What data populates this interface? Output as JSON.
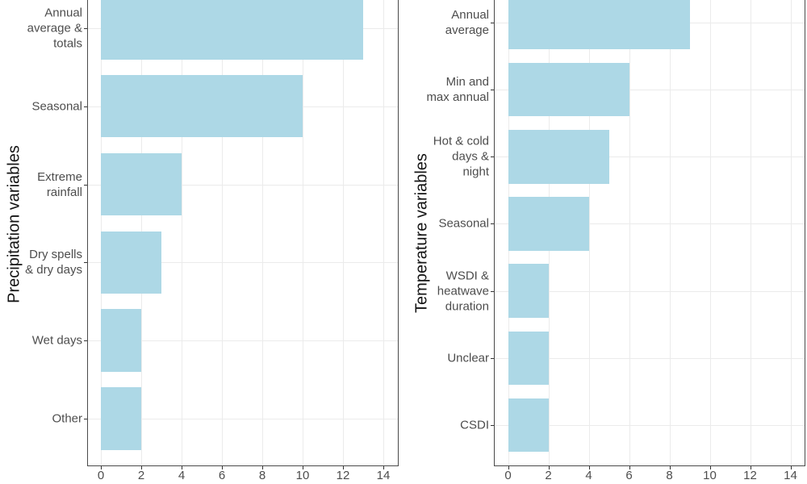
{
  "figure": {
    "description_visible_text_only": true
  },
  "style": {
    "bar_fill": "#ADD8E6",
    "grid_color": "#EBEBEB",
    "panel_border_color": "#4A4A4A",
    "tick_color": "#333333",
    "tick_label_color": "#4D4D4D",
    "axis_title_color": "#141414",
    "background": "#FFFFFF"
  },
  "chart_data": [
    {
      "type": "bar",
      "orientation": "horizontal",
      "title": "",
      "ylabel": "Precipitation variables",
      "xlabel": "",
      "categories": [
        "Annual average & totals",
        "Seasonal",
        "Extreme rainfall",
        "Dry spells & dry days",
        "Wet days",
        "Other"
      ],
      "category_display": [
        "Annual\naverage &\ntotals",
        "Seasonal",
        "Extreme\nrainfall",
        "Dry spells\n& dry days",
        "Wet days",
        "Other"
      ],
      "values": [
        13,
        10,
        4,
        3,
        2,
        2
      ],
      "xlim": [
        0,
        14
      ],
      "xticks": [
        0,
        2,
        4,
        6,
        8,
        10,
        12,
        14
      ],
      "grid": true,
      "legend": false,
      "bar_width_fraction": 0.8
    },
    {
      "type": "bar",
      "orientation": "horizontal",
      "title": "",
      "ylabel": "Temperature variables",
      "xlabel": "",
      "categories": [
        "Annual average",
        "Min and max annual",
        "Hot & cold days & night",
        "Seasonal",
        "WSDI & heatwave duration",
        "Unclear",
        "CSDI"
      ],
      "category_display": [
        "Annual\naverage",
        "Min and\nmax annual",
        "Hot & cold\ndays &\nnight",
        "Seasonal",
        "WSDI &\nheatwave\nduration",
        "Unclear",
        "CSDI"
      ],
      "values": [
        9,
        6,
        5,
        4,
        2,
        2,
        2
      ],
      "xlim": [
        0,
        14
      ],
      "xticks": [
        0,
        2,
        4,
        6,
        8,
        10,
        12,
        14
      ],
      "grid": true,
      "legend": false,
      "bar_width_fraction": 0.8
    }
  ]
}
